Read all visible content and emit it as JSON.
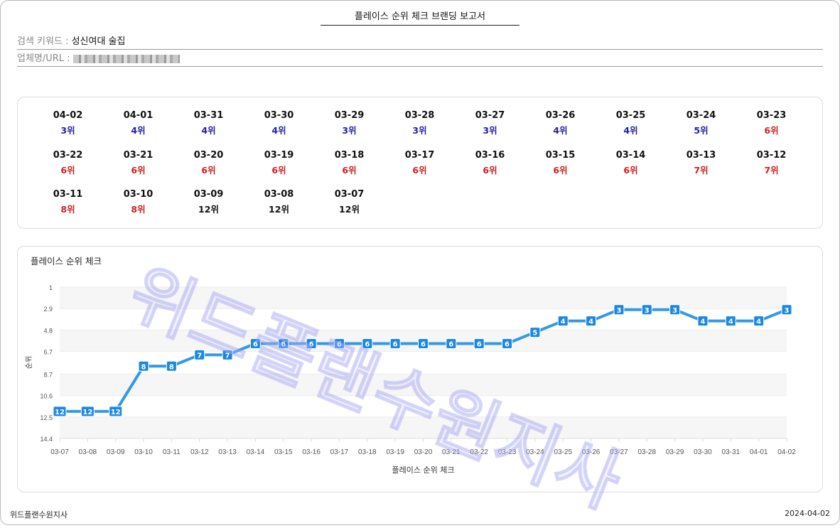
{
  "report_title": "플레이스 순위 체크 브랜딩 보고서",
  "keyword": {
    "label": "검색 키워드 : ",
    "value": "성신여대 술집"
  },
  "business": {
    "label": "업체명/URL : ",
    "value": "[blurred]"
  },
  "colors": {
    "top5": "#2222aa",
    "mid": "#cc2222",
    "low": "#111111",
    "line": "#3399e6"
  },
  "ranks": [
    {
      "date": "04-02",
      "rank": "3위",
      "tier": "top5"
    },
    {
      "date": "04-01",
      "rank": "4위",
      "tier": "top5"
    },
    {
      "date": "03-31",
      "rank": "4위",
      "tier": "top5"
    },
    {
      "date": "03-30",
      "rank": "4위",
      "tier": "top5"
    },
    {
      "date": "03-29",
      "rank": "3위",
      "tier": "top5"
    },
    {
      "date": "03-28",
      "rank": "3위",
      "tier": "top5"
    },
    {
      "date": "03-27",
      "rank": "3위",
      "tier": "top5"
    },
    {
      "date": "03-26",
      "rank": "4위",
      "tier": "top5"
    },
    {
      "date": "03-25",
      "rank": "4위",
      "tier": "top5"
    },
    {
      "date": "03-24",
      "rank": "5위",
      "tier": "top5"
    },
    {
      "date": "03-23",
      "rank": "6위",
      "tier": "mid"
    },
    {
      "date": "03-22",
      "rank": "6위",
      "tier": "mid"
    },
    {
      "date": "03-21",
      "rank": "6위",
      "tier": "mid"
    },
    {
      "date": "03-20",
      "rank": "6위",
      "tier": "mid"
    },
    {
      "date": "03-19",
      "rank": "6위",
      "tier": "mid"
    },
    {
      "date": "03-18",
      "rank": "6위",
      "tier": "mid"
    },
    {
      "date": "03-17",
      "rank": "6위",
      "tier": "mid"
    },
    {
      "date": "03-16",
      "rank": "6위",
      "tier": "mid"
    },
    {
      "date": "03-15",
      "rank": "6위",
      "tier": "mid"
    },
    {
      "date": "03-14",
      "rank": "6위",
      "tier": "mid"
    },
    {
      "date": "03-13",
      "rank": "7위",
      "tier": "mid"
    },
    {
      "date": "03-12",
      "rank": "7위",
      "tier": "mid"
    },
    {
      "date": "03-11",
      "rank": "8위",
      "tier": "mid"
    },
    {
      "date": "03-10",
      "rank": "8위",
      "tier": "mid"
    },
    {
      "date": "03-09",
      "rank": "12위",
      "tier": "low"
    },
    {
      "date": "03-08",
      "rank": "12위",
      "tier": "low"
    },
    {
      "date": "03-07",
      "rank": "12위",
      "tier": "low"
    }
  ],
  "chart_data": {
    "type": "line",
    "title": "플레이스 순위 체크",
    "xlabel": "플레이스 순위 체크",
    "ylabel": "순위",
    "y_inverted": true,
    "ylim": [
      1,
      14.4
    ],
    "yticks": [
      "1",
      "2.9",
      "4.8",
      "6.7",
      "8.7",
      "10.6",
      "12.5",
      "14.4"
    ],
    "grid": "alternating bands",
    "x": [
      "03-07",
      "03-08",
      "03-09",
      "03-10",
      "03-11",
      "03-12",
      "03-13",
      "03-14",
      "03-15",
      "03-16",
      "03-17",
      "03-18",
      "03-19",
      "03-20",
      "03-21",
      "03-22",
      "03-23",
      "03-24",
      "03-25",
      "03-26",
      "03-27",
      "03-28",
      "03-29",
      "03-30",
      "03-31",
      "04-01",
      "04-02"
    ],
    "values": [
      12,
      12,
      12,
      8,
      8,
      7,
      7,
      6,
      6,
      6,
      6,
      6,
      6,
      6,
      6,
      6,
      6,
      5,
      4,
      4,
      3,
      3,
      3,
      4,
      4,
      4,
      3
    ]
  },
  "watermark": "위드플랜수원지사",
  "footer": {
    "left": "위드플랜수원지사",
    "right": "2024-04-02"
  }
}
